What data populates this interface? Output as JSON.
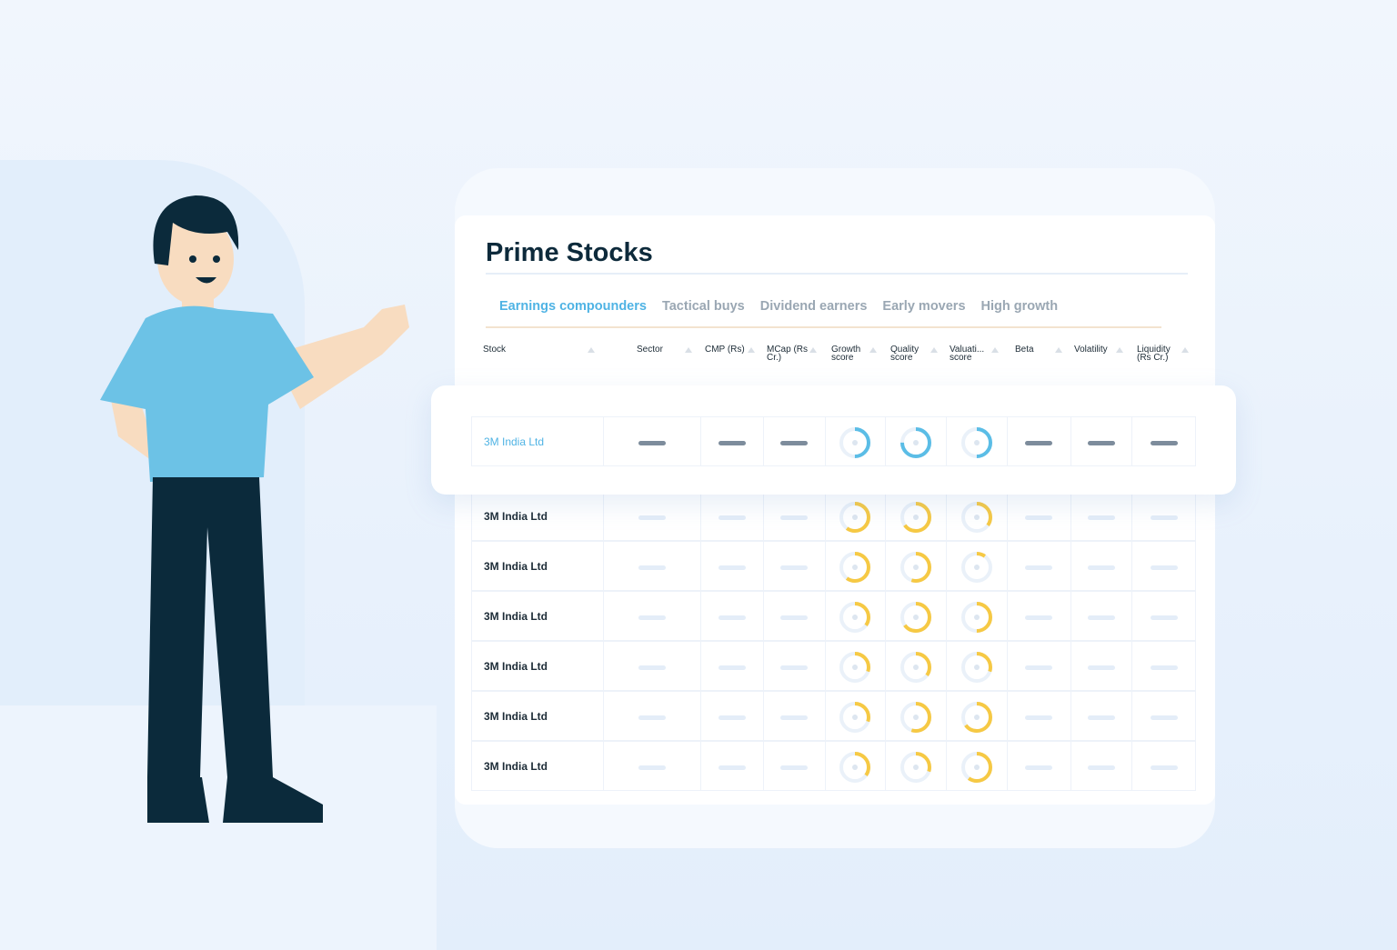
{
  "title": "Prime Stocks",
  "tabs": [
    {
      "label": "Earnings compounders",
      "active": true
    },
    {
      "label": "Tactical buys"
    },
    {
      "label": "Dividend earners"
    },
    {
      "label": "Early movers"
    },
    {
      "label": "High growth"
    }
  ],
  "columns": [
    "Stock",
    "Sector",
    "CMP (Rs)",
    "MCap (Rs Cr.)",
    "Growth score",
    "Quality score",
    "Valuati... score",
    "Beta",
    "Volatility",
    "Liquidity (Rs Cr.)"
  ],
  "colors": {
    "accent": "#4fb3e4",
    "highlight_ring": "#5bbde6",
    "ring": "#f6c944",
    "title": "#0d2a3b"
  },
  "highlight_row": {
    "stock": "3M India Ltd",
    "growth": 0.5,
    "quality": 0.75,
    "valuation": 0.5
  },
  "rows": [
    {
      "stock": "3M India Ltd",
      "growth": 0.6,
      "quality": 0.65,
      "valuation": 0.35
    },
    {
      "stock": "3M India Ltd",
      "growth": 0.6,
      "quality": 0.55,
      "valuation": 0.1
    },
    {
      "stock": "3M India Ltd",
      "growth": 0.35,
      "quality": 0.65,
      "valuation": 0.5
    },
    {
      "stock": "3M India Ltd",
      "growth": 0.3,
      "quality": 0.35,
      "valuation": 0.3
    },
    {
      "stock": "3M India Ltd",
      "growth": 0.3,
      "quality": 0.55,
      "valuation": 0.65
    },
    {
      "stock": "3M India Ltd",
      "growth": 0.35,
      "quality": 0.3,
      "valuation": 0.6
    }
  ]
}
